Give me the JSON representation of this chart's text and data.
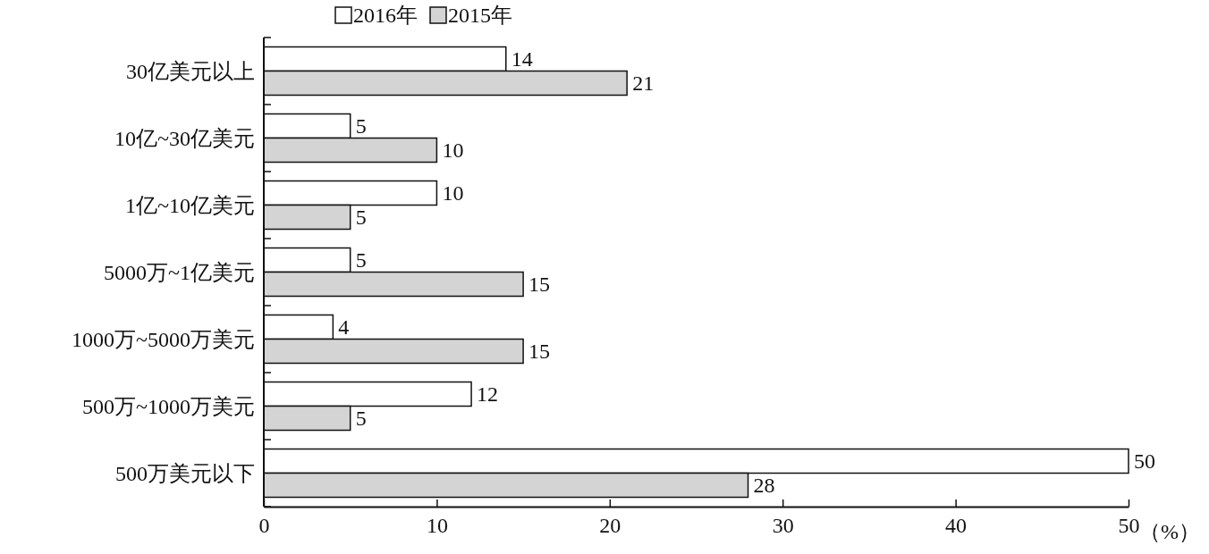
{
  "chart_data": {
    "type": "bar",
    "orientation": "horizontal",
    "categories": [
      "30亿美元以上",
      "10亿~30亿美元",
      "1亿~10亿美元",
      "5000万~1亿美元",
      "1000万~5000万美元",
      "500万~1000万美元",
      "500万美元以下"
    ],
    "series": [
      {
        "name": "2016年",
        "color": "#ffffff",
        "values": [
          14,
          5,
          10,
          5,
          4,
          12,
          50
        ]
      },
      {
        "name": "2015年",
        "color": "#d4d4d4",
        "values": [
          21,
          10,
          5,
          15,
          15,
          5,
          28
        ]
      }
    ],
    "xlim": [
      0,
      50
    ],
    "xticks": [
      0,
      10,
      20,
      30,
      40,
      50
    ],
    "xlabel": "（%）",
    "data_labels": true,
    "legend": "top",
    "grid": false
  }
}
